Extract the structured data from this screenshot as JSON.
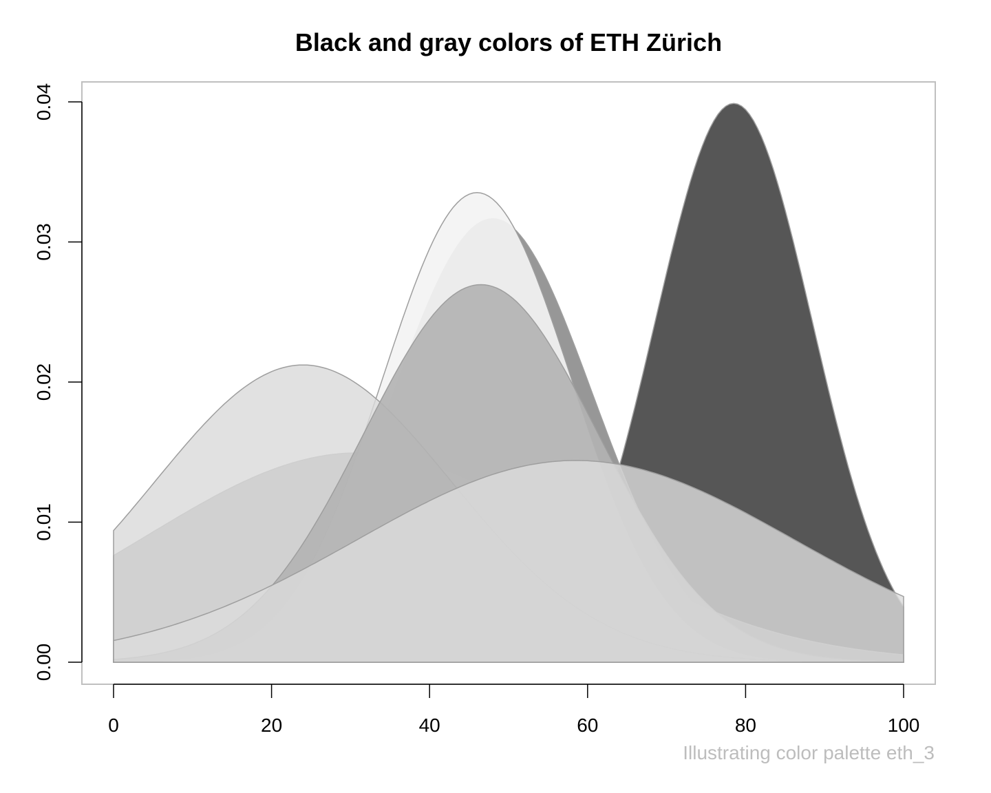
{
  "chart_data": {
    "type": "area",
    "title": "Black and gray colors of ETH Zürich",
    "caption": "Illustrating color palette eth_3",
    "xlabel": "",
    "ylabel": "",
    "xlim": [
      0,
      100
    ],
    "ylim": [
      0,
      0.04
    ],
    "x_ticks": [
      0,
      20,
      40,
      60,
      80,
      100
    ],
    "x_tick_labels": [
      "0",
      "20",
      "40",
      "60",
      "80",
      "100"
    ],
    "y_ticks": [
      0,
      0.01,
      0.02,
      0.03,
      0.04
    ],
    "y_tick_labels": [
      "0.00",
      "0.01",
      "0.02",
      "0.03",
      "0.04"
    ],
    "grid": false,
    "legend": "none",
    "series": [
      {
        "mean": 78.5,
        "sd": 10.0,
        "fill": "#4d4d4d",
        "opacity": 0.95
      },
      {
        "mean": 48.0,
        "sd": 12.6,
        "fill": "#8c8c8c",
        "opacity": 0.9
      },
      {
        "mean": 31.0,
        "sd": 26.7,
        "fill": "#a3a3a3",
        "opacity": 0.85
      },
      {
        "mean": 46.0,
        "sd": 11.9,
        "fill": "#f3f3f3",
        "opacity": 0.92
      },
      {
        "mean": 24.0,
        "sd": 18.8,
        "fill": "#d9d9d9",
        "opacity": 0.8
      },
      {
        "mean": 46.5,
        "sd": 14.8,
        "fill": "#b3b3b3",
        "opacity": 0.9
      },
      {
        "mean": 58.5,
        "sd": 27.7,
        "fill": "#dcdcdc",
        "opacity": 0.8
      }
    ]
  }
}
